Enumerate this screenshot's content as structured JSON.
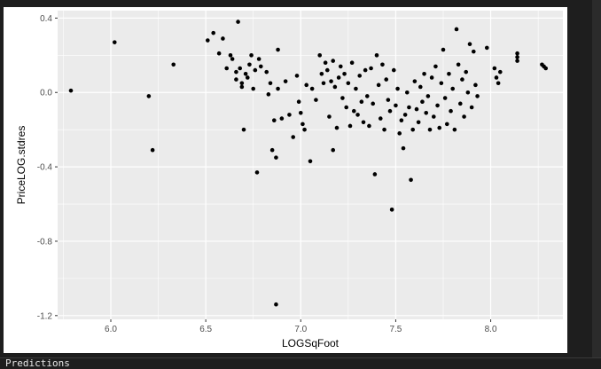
{
  "console": {
    "label": "Predictions"
  },
  "chart_data": {
    "type": "scatter",
    "title": "",
    "xlabel": "LOGSqFoot",
    "ylabel": "PriceLOG.stdres",
    "xlim": [
      5.72,
      8.38
    ],
    "ylim": [
      -1.22,
      0.44
    ],
    "x_ticks": [
      6.0,
      6.5,
      7.0,
      7.5,
      8.0
    ],
    "y_ticks": [
      0.4,
      0.0,
      -0.4,
      -0.8,
      -1.2
    ],
    "grid": true,
    "colors": {
      "panel": "#ebebeb",
      "grid": "#ffffff",
      "point": "#000000"
    },
    "points": [
      [
        5.79,
        0.01
      ],
      [
        6.02,
        0.27
      ],
      [
        6.2,
        -0.02
      ],
      [
        6.22,
        -0.31
      ],
      [
        6.33,
        0.15
      ],
      [
        6.51,
        0.28
      ],
      [
        6.54,
        0.32
      ],
      [
        6.57,
        0.21
      ],
      [
        6.59,
        0.29
      ],
      [
        6.61,
        0.13
      ],
      [
        6.63,
        0.2
      ],
      [
        6.64,
        0.18
      ],
      [
        6.66,
        0.11
      ],
      [
        6.66,
        0.07
      ],
      [
        6.67,
        0.38
      ],
      [
        6.68,
        0.13
      ],
      [
        6.69,
        0.05
      ],
      [
        6.69,
        0.03
      ],
      [
        6.7,
        -0.2
      ],
      [
        6.71,
        0.1
      ],
      [
        6.72,
        0.08
      ],
      [
        6.73,
        0.15
      ],
      [
        6.74,
        0.2
      ],
      [
        6.75,
        0.02
      ],
      [
        6.76,
        0.12
      ],
      [
        6.77,
        -0.43
      ],
      [
        6.78,
        0.18
      ],
      [
        6.79,
        0.14
      ],
      [
        6.82,
        0.11
      ],
      [
        6.83,
        -0.01
      ],
      [
        6.84,
        0.05
      ],
      [
        6.85,
        -0.31
      ],
      [
        6.86,
        -0.15
      ],
      [
        6.87,
        -0.35
      ],
      [
        6.88,
        0.02
      ],
      [
        6.88,
        0.23
      ],
      [
        6.9,
        -0.14
      ],
      [
        6.92,
        0.06
      ],
      [
        6.94,
        -0.12
      ],
      [
        6.96,
        -0.24
      ],
      [
        6.98,
        0.09
      ],
      [
        6.99,
        -0.05
      ],
      [
        7.0,
        -0.11
      ],
      [
        7.01,
        -0.17
      ],
      [
        7.02,
        -0.2
      ],
      [
        7.03,
        0.04
      ],
      [
        7.05,
        -0.37
      ],
      [
        7.06,
        0.02
      ],
      [
        7.08,
        -0.04
      ],
      [
        7.1,
        0.2
      ],
      [
        7.11,
        0.1
      ],
      [
        7.12,
        0.05
      ],
      [
        7.13,
        0.16
      ],
      [
        7.14,
        0.12
      ],
      [
        7.15,
        -0.13
      ],
      [
        7.16,
        0.06
      ],
      [
        7.17,
        -0.31
      ],
      [
        7.17,
        0.17
      ],
      [
        7.18,
        0.03
      ],
      [
        7.19,
        -0.19
      ],
      [
        7.2,
        0.08
      ],
      [
        7.21,
        0.14
      ],
      [
        7.22,
        -0.03
      ],
      [
        7.23,
        0.1
      ],
      [
        7.24,
        -0.08
      ],
      [
        7.25,
        0.05
      ],
      [
        7.26,
        -0.18
      ],
      [
        7.27,
        0.16
      ],
      [
        7.28,
        -0.1
      ],
      [
        7.29,
        0.02
      ],
      [
        7.3,
        -0.12
      ],
      [
        7.31,
        0.09
      ],
      [
        7.32,
        -0.05
      ],
      [
        7.33,
        -0.16
      ],
      [
        7.34,
        0.12
      ],
      [
        7.35,
        -0.02
      ],
      [
        7.36,
        -0.18
      ],
      [
        7.37,
        0.13
      ],
      [
        7.38,
        -0.06
      ],
      [
        7.39,
        -0.44
      ],
      [
        7.4,
        0.2
      ],
      [
        7.41,
        0.04
      ],
      [
        7.42,
        -0.14
      ],
      [
        7.43,
        0.15
      ],
      [
        7.44,
        -0.2
      ],
      [
        7.45,
        0.07
      ],
      [
        7.46,
        -0.04
      ],
      [
        7.47,
        -0.1
      ],
      [
        7.48,
        -0.63
      ],
      [
        7.49,
        0.12
      ],
      [
        7.5,
        -0.07
      ],
      [
        7.51,
        0.02
      ],
      [
        7.52,
        -0.22
      ],
      [
        7.53,
        -0.15
      ],
      [
        7.54,
        -0.3
      ],
      [
        7.55,
        -0.12
      ],
      [
        7.56,
        0.0
      ],
      [
        7.57,
        -0.08
      ],
      [
        7.58,
        -0.47
      ],
      [
        7.59,
        -0.2
      ],
      [
        7.6,
        0.06
      ],
      [
        7.61,
        -0.09
      ],
      [
        7.62,
        -0.16
      ],
      [
        7.63,
        0.03
      ],
      [
        7.64,
        -0.05
      ],
      [
        7.65,
        0.1
      ],
      [
        7.66,
        -0.11
      ],
      [
        7.67,
        -0.02
      ],
      [
        7.68,
        -0.2
      ],
      [
        7.69,
        0.08
      ],
      [
        7.7,
        -0.13
      ],
      [
        7.71,
        0.14
      ],
      [
        7.72,
        -0.07
      ],
      [
        7.73,
        -0.19
      ],
      [
        7.74,
        0.05
      ],
      [
        7.75,
        0.23
      ],
      [
        7.76,
        -0.03
      ],
      [
        7.77,
        -0.17
      ],
      [
        7.78,
        0.1
      ],
      [
        7.79,
        -0.1
      ],
      [
        7.8,
        0.02
      ],
      [
        7.81,
        -0.2
      ],
      [
        7.82,
        0.34
      ],
      [
        7.83,
        0.15
      ],
      [
        7.84,
        -0.06
      ],
      [
        7.85,
        0.07
      ],
      [
        7.86,
        -0.13
      ],
      [
        7.87,
        0.11
      ],
      [
        7.88,
        0.0
      ],
      [
        7.89,
        0.26
      ],
      [
        7.9,
        -0.08
      ],
      [
        7.91,
        0.22
      ],
      [
        7.92,
        0.04
      ],
      [
        7.93,
        -0.02
      ],
      [
        7.98,
        0.24
      ],
      [
        8.02,
        0.13
      ],
      [
        8.03,
        0.08
      ],
      [
        8.04,
        0.05
      ],
      [
        8.05,
        0.11
      ],
      [
        8.14,
        0.21
      ],
      [
        8.14,
        0.19
      ],
      [
        8.14,
        0.17
      ],
      [
        8.27,
        0.15
      ],
      [
        8.28,
        0.14
      ],
      [
        8.29,
        0.13
      ],
      [
        6.87,
        -1.14
      ]
    ]
  }
}
